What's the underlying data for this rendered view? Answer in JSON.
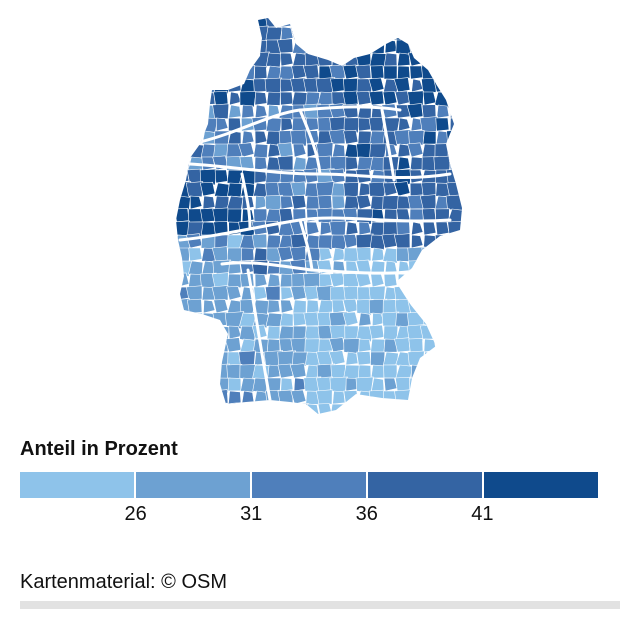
{
  "legend": {
    "title": "Anteil in Prozent",
    "ticks": [
      "26",
      "31",
      "36",
      "41"
    ],
    "colors": [
      "#8ec3ea",
      "#6da1d2",
      "#4f7fbb",
      "#3464a3",
      "#0f4a8c"
    ]
  },
  "credit": "Kartenmaterial: © OSM",
  "map": {
    "fill_default": "#4f7fbb",
    "border_color": "#ffffff"
  }
}
